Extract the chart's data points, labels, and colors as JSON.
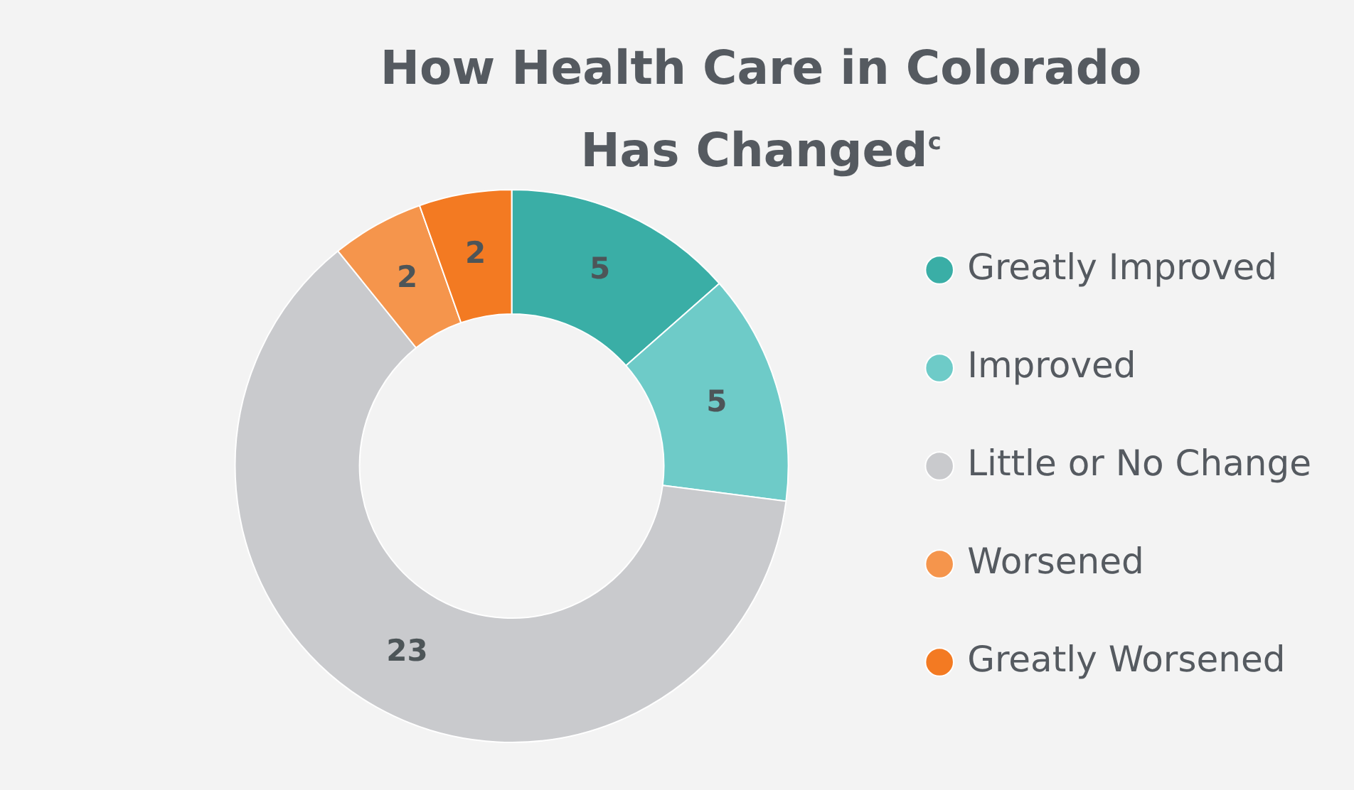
{
  "chart_data": {
    "type": "donut",
    "title": "How Health Care in Colorado Has Changed$^{c}$",
    "categories": [
      "Greatly Improved",
      "Improved",
      "Little or No Change",
      "Worsened",
      "Greatly Worsened"
    ],
    "values": [
      5,
      5,
      23,
      2,
      2
    ],
    "colors": [
      "#3aaea6",
      "#6ecbc8",
      "#c9cacd",
      "#f5954c",
      "#f37a22"
    ],
    "data_labels": true,
    "legend": "right"
  }
}
